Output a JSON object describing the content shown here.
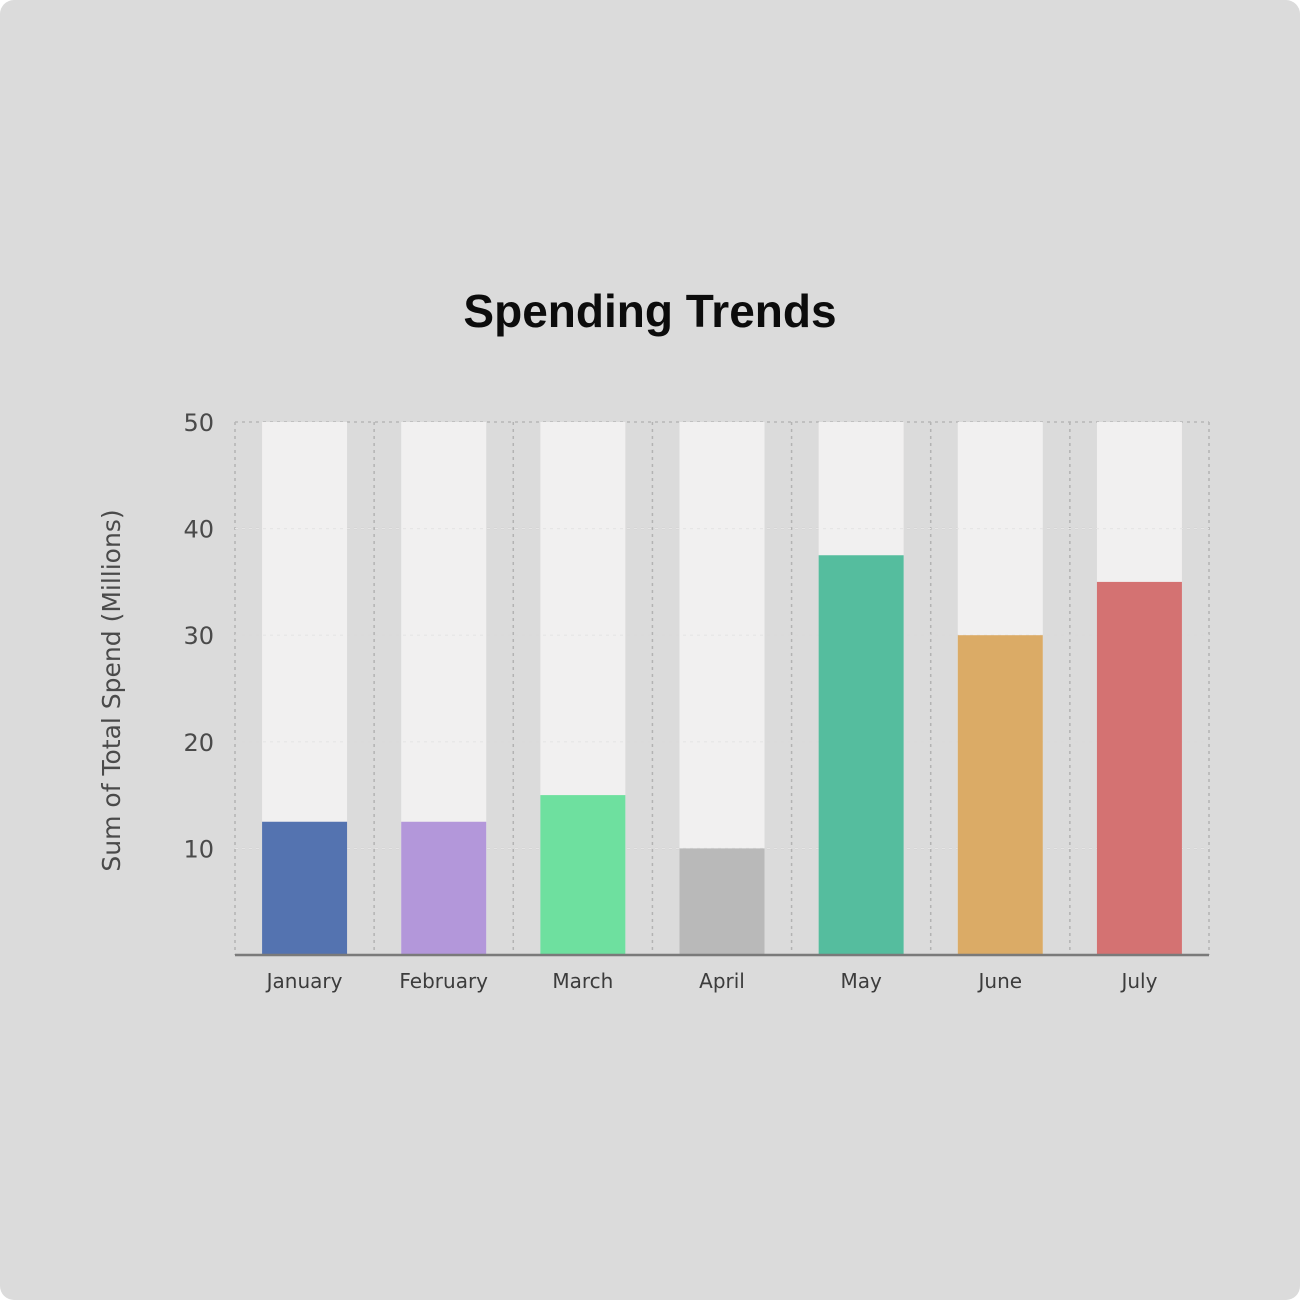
{
  "chart_data": {
    "type": "bar",
    "title": "Spending Trends",
    "xlabel": "",
    "ylabel": "Sum of Total Spend (Millions)",
    "ylim": [
      0,
      50
    ],
    "yticks": [
      10,
      20,
      30,
      40,
      50
    ],
    "grid": true,
    "categories": [
      "January",
      "February",
      "March",
      "April",
      "May",
      "June",
      "July"
    ],
    "values": [
      12.5,
      12.5,
      15,
      10,
      37.5,
      30,
      35
    ],
    "colors": [
      "#5473b0",
      "#b397da",
      "#6ee09f",
      "#b9b9b9",
      "#55bd9e",
      "#dbab66",
      "#d47272"
    ],
    "track_color": "#f1f0f0"
  }
}
